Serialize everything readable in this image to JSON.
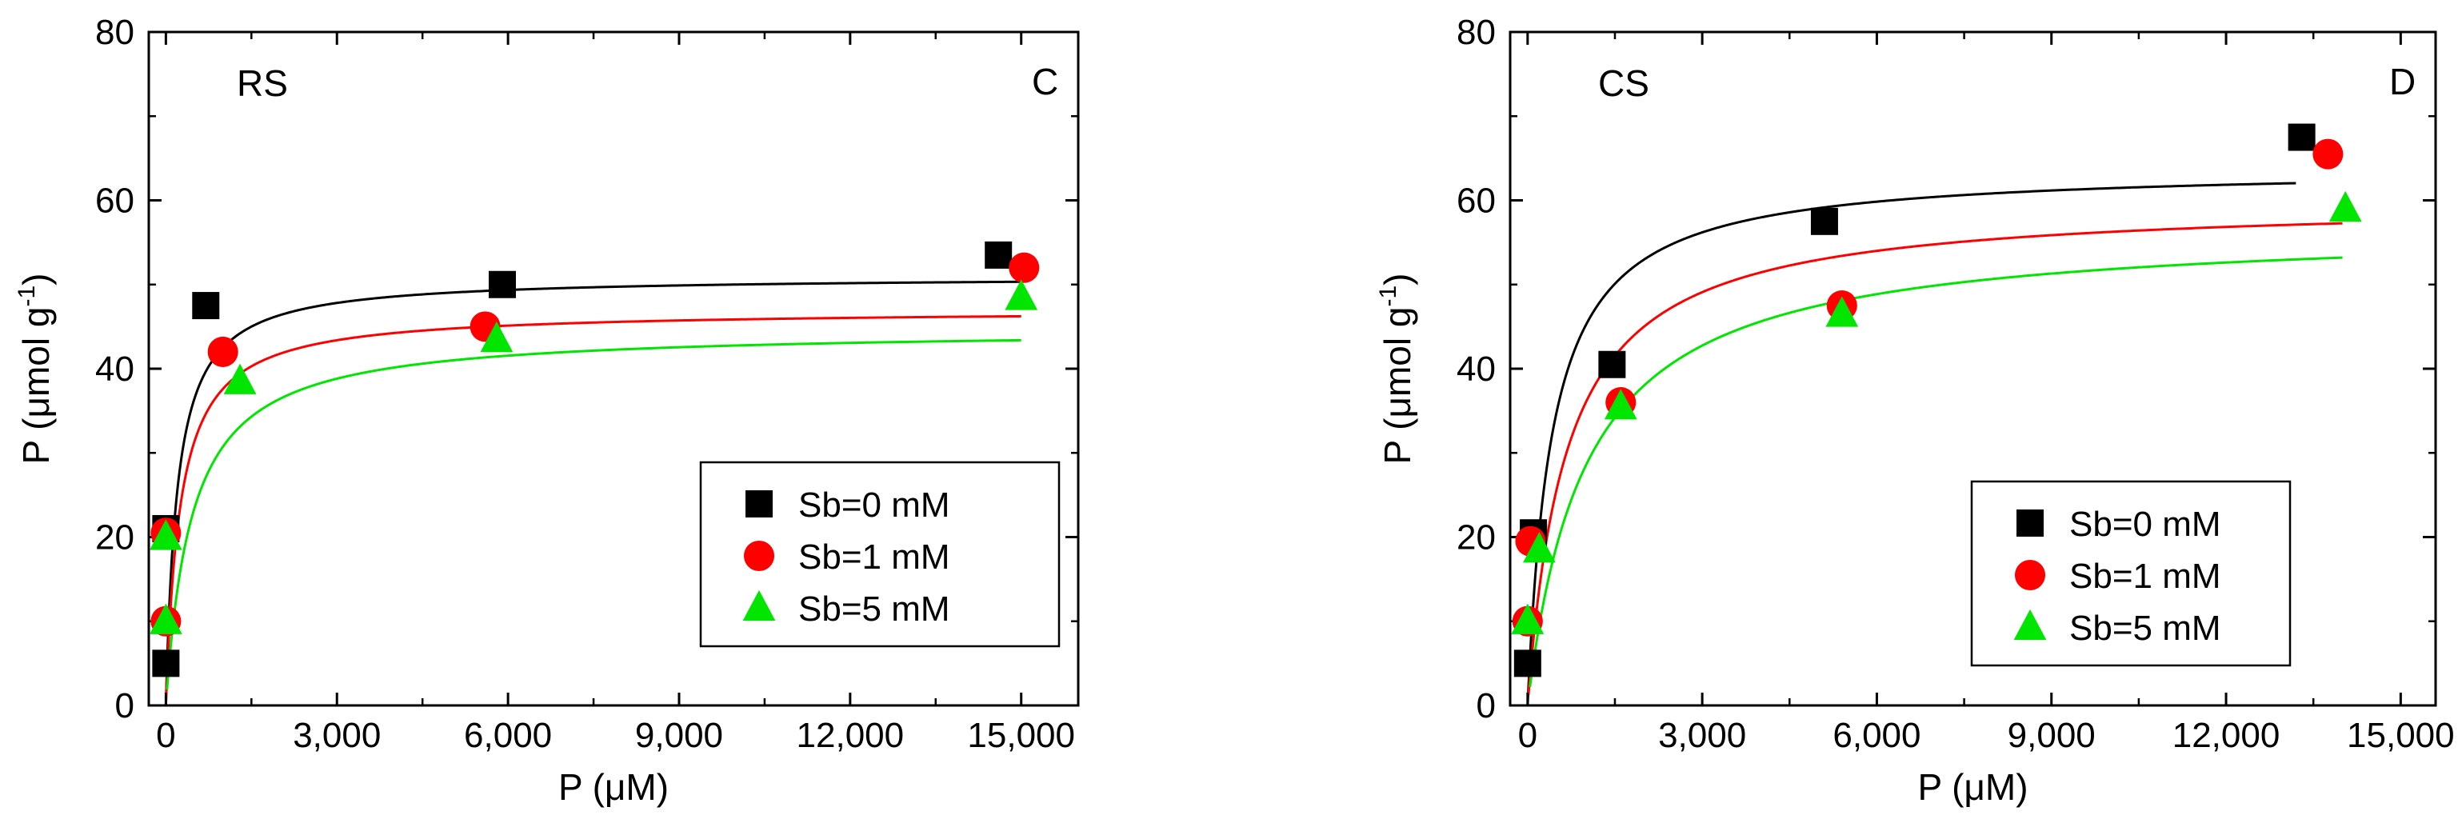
{
  "chart_data": [
    {
      "type": "scatter",
      "panel_label": "C",
      "soil_label": "RS",
      "xlabel": "P (μM)",
      "ylabel_main": "P (μmol g",
      "ylabel_sup": "-1",
      "ylabel_end": ")",
      "xlim": [
        -300,
        16000
      ],
      "ylim": [
        0,
        80
      ],
      "xticks": [
        0,
        3000,
        6000,
        9000,
        12000,
        15000
      ],
      "xtick_labels": [
        "0",
        "3,000",
        "6,000",
        "9,000",
        "12,000",
        "15,000"
      ],
      "yticks": [
        0,
        20,
        40,
        60,
        80
      ],
      "ytick_labels": [
        "0",
        "20",
        "40",
        "60",
        "80"
      ],
      "legend_position": "lower-right",
      "series": [
        {
          "name": "Sb=0 mM",
          "marker": "square",
          "color": "#000000",
          "x": [
            0,
            0,
            700,
            5900,
            14600
          ],
          "y": [
            5,
            21,
            47.5,
            50,
            53.5
          ],
          "fit": {
            "qmax": 51,
            "k": 0.005,
            "x0": -40,
            "x1": 15000
          }
        },
        {
          "name": "Sb=1 mM",
          "marker": "circle",
          "color": "#ff0000",
          "x": [
            0,
            0,
            1000,
            5600,
            15050
          ],
          "y": [
            10,
            20.5,
            42,
            45,
            52
          ],
          "fit": {
            "qmax": 47,
            "k": 0.004,
            "x0": 0,
            "x1": 15000
          }
        },
        {
          "name": "Sb=5 mM",
          "marker": "triangle",
          "color": "#00e600",
          "x": [
            0,
            0,
            1300,
            5800,
            15000
          ],
          "y": [
            10,
            20,
            38.5,
            43.5,
            48.5
          ],
          "fit": {
            "qmax": 44.7,
            "k": 0.0022,
            "x0": 20,
            "x1": 15000
          }
        }
      ]
    },
    {
      "type": "scatter",
      "panel_label": "D",
      "soil_label": "CS",
      "xlabel": "P (μM)",
      "ylabel_main": "P (μmol g",
      "ylabel_sup": "-1",
      "ylabel_end": ")",
      "xlim": [
        -300,
        15600
      ],
      "ylim": [
        0,
        80
      ],
      "xticks": [
        0,
        3000,
        6000,
        9000,
        12000,
        15000
      ],
      "xtick_labels": [
        "0",
        "3,000",
        "6,000",
        "9,000",
        "12,000",
        "15,000"
      ],
      "yticks": [
        0,
        20,
        40,
        60,
        80
      ],
      "ytick_labels": [
        "0",
        "20",
        "40",
        "60",
        "80"
      ],
      "legend_position": "lower-right",
      "series": [
        {
          "name": "Sb=0 mM",
          "marker": "square",
          "color": "#000000",
          "x": [
            0,
            100,
            1450,
            5100,
            13300
          ],
          "y": [
            5,
            20.5,
            40.5,
            57.5,
            67.5
          ],
          "fit": {
            "qmax": 64,
            "k": 0.0024,
            "x0": -60,
            "x1": 13200
          }
        },
        {
          "name": "Sb=1 mM",
          "marker": "circle",
          "color": "#ff0000",
          "x": [
            0,
            50,
            1600,
            5400,
            13750
          ],
          "y": [
            10,
            19.5,
            36,
            47.5,
            65.5
          ],
          "fit": {
            "qmax": 60,
            "k": 0.0015,
            "x0": 15,
            "x1": 14000
          }
        },
        {
          "name": "Sb=5 mM",
          "marker": "triangle",
          "color": "#00e600",
          "x": [
            0,
            200,
            1600,
            5400,
            14050
          ],
          "y": [
            10,
            18.5,
            35.5,
            46.5,
            59
          ],
          "fit": {
            "qmax": 57,
            "k": 0.001,
            "x0": 40,
            "x1": 14000
          }
        }
      ]
    }
  ]
}
